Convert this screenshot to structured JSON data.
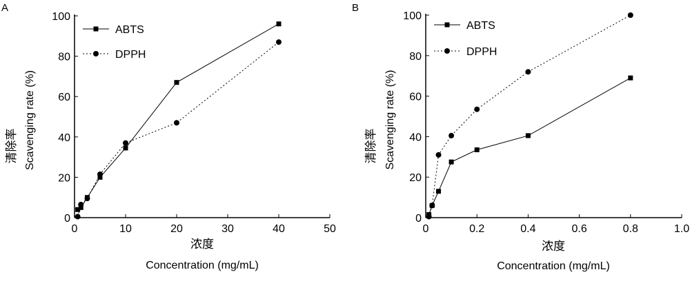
{
  "chart_data": [
    {
      "type": "line",
      "panel": "A",
      "xlabel_cn": "浓度",
      "xlabel": "Concentration (mg/mL)",
      "ylabel_cn": "清除率",
      "ylabel": "Scavenging rate (%)",
      "xlim": [
        0,
        50
      ],
      "ylim": [
        0,
        100
      ],
      "xticks": [
        0,
        10,
        20,
        30,
        40,
        50
      ],
      "xtick_labels": [
        "0",
        "10",
        "20",
        "30",
        "40",
        "50"
      ],
      "yticks": [
        0,
        20,
        40,
        60,
        80,
        100
      ],
      "ytick_labels": [
        "0",
        "20",
        "40",
        "60",
        "80",
        "100"
      ],
      "legend_position": "top-left",
      "series": [
        {
          "name": "ABTS",
          "marker": "square",
          "line": "solid",
          "x": [
            0.625,
            1.25,
            2.5,
            5,
            10,
            20,
            40
          ],
          "y": [
            4,
            5,
            10,
            20,
            34.5,
            67,
            96
          ]
        },
        {
          "name": "DPPH",
          "marker": "circle",
          "line": "dotted",
          "x": [
            0.625,
            1.25,
            2.5,
            5,
            10,
            20,
            40
          ],
          "y": [
            0.5,
            6.5,
            9.5,
            21.5,
            37,
            47,
            87
          ]
        }
      ]
    },
    {
      "type": "line",
      "panel": "B",
      "xlabel_cn": "浓度",
      "xlabel": "Concentration (mg/mL)",
      "ylabel_cn": "清除率",
      "ylabel": "Scavenging rate (%)",
      "xlim": [
        0,
        1.0
      ],
      "ylim": [
        0,
        100
      ],
      "xticks": [
        0,
        0.2,
        0.4,
        0.6,
        0.8,
        1.0
      ],
      "xtick_labels": [
        "0",
        "0.2",
        "0.4",
        "0.6",
        "0.8",
        "1.0"
      ],
      "yticks": [
        0,
        20,
        40,
        60,
        80,
        100
      ],
      "ytick_labels": [
        "0",
        "20",
        "40",
        "60",
        "80",
        "100"
      ],
      "legend_position": "top-left",
      "series": [
        {
          "name": "ABTS",
          "marker": "square",
          "line": "solid",
          "x": [
            0.0125,
            0.025,
            0.05,
            0.1,
            0.2,
            0.4,
            0.8
          ],
          "y": [
            1.5,
            6,
            13,
            27.5,
            33.5,
            40.5,
            69
          ]
        },
        {
          "name": "DPPH",
          "marker": "circle",
          "line": "dotted",
          "x": [
            0.0125,
            0.025,
            0.05,
            0.1,
            0.2,
            0.4,
            0.8
          ],
          "y": [
            0.5,
            6,
            31,
            40.5,
            53.5,
            72,
            100
          ]
        }
      ]
    }
  ]
}
